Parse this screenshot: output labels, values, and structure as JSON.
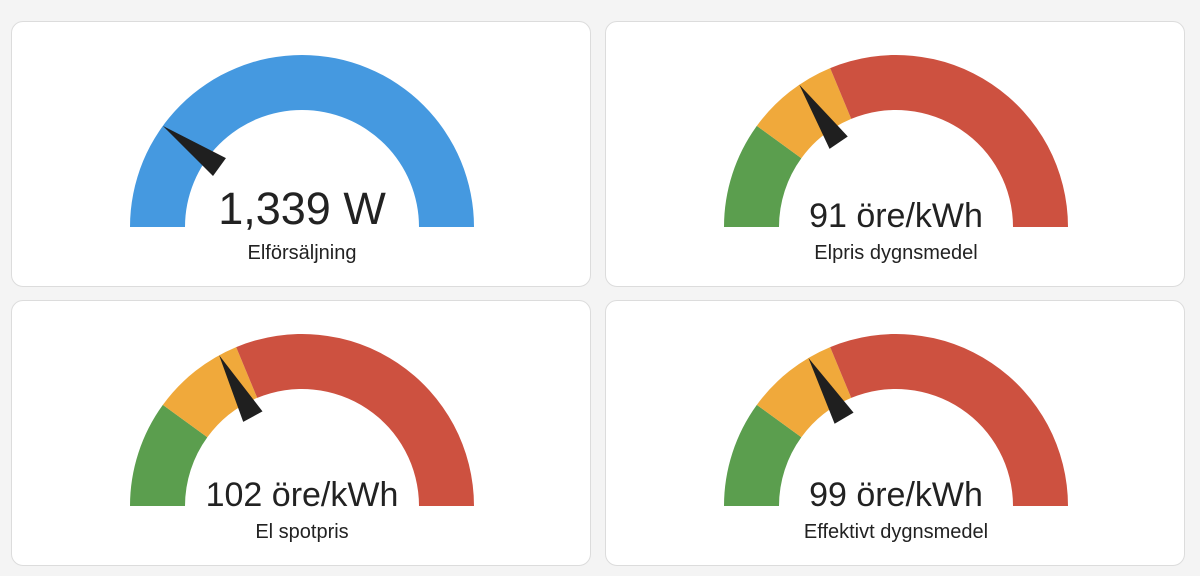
{
  "colors": {
    "blue": "#4599e0",
    "green": "#5b9e4e",
    "orange": "#f0a93b",
    "red": "#cd5140",
    "needle": "#1f1f1f"
  },
  "gauges": [
    {
      "name": "Elförsäljning",
      "value_text": "1,339 W",
      "needle_fraction": 0.2,
      "segments": [
        {
          "color": "blue",
          "from": 0,
          "to": 1
        }
      ]
    },
    {
      "name": "Elpris dygnsmedel",
      "value_text": "91 öre/kWh",
      "needle_fraction": 0.31,
      "segments": [
        {
          "color": "green",
          "from": 0,
          "to": 0.2
        },
        {
          "color": "orange",
          "from": 0.2,
          "to": 0.375
        },
        {
          "color": "red",
          "from": 0.375,
          "to": 1
        }
      ]
    },
    {
      "name": "El spotpris",
      "value_text": "102 öre/kWh",
      "needle_fraction": 0.34,
      "segments": [
        {
          "color": "green",
          "from": 0,
          "to": 0.2
        },
        {
          "color": "orange",
          "from": 0.2,
          "to": 0.375
        },
        {
          "color": "red",
          "from": 0.375,
          "to": 1
        }
      ]
    },
    {
      "name": "Effektivt dygnsmedel",
      "value_text": "99 öre/kWh",
      "needle_fraction": 0.33,
      "segments": [
        {
          "color": "green",
          "from": 0,
          "to": 0.2
        },
        {
          "color": "orange",
          "from": 0.2,
          "to": 0.375
        },
        {
          "color": "red",
          "from": 0.375,
          "to": 1
        }
      ]
    }
  ]
}
